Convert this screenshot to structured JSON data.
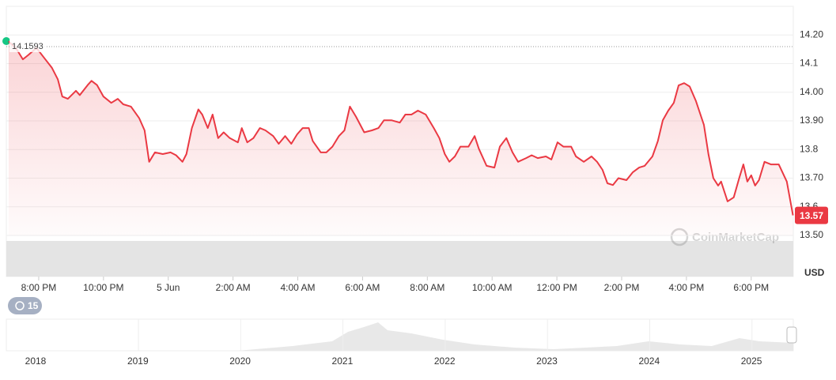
{
  "chart_data": {
    "type": "line",
    "x": [
      0.07,
      0.32,
      0.51,
      0.68,
      0.93,
      1.17,
      1.41,
      1.59,
      1.73,
      1.9,
      2.15,
      2.27,
      2.51,
      2.63,
      2.8,
      3.0,
      3.24,
      3.44,
      3.61,
      3.85,
      4.1,
      4.27,
      4.41,
      4.59,
      4.83,
      5.07,
      5.24,
      5.44,
      5.56,
      5.73,
      5.93,
      6.05,
      6.22,
      6.37,
      6.54,
      6.71,
      6.9,
      7.15,
      7.27,
      7.44,
      7.63,
      7.83,
      8.0,
      8.24,
      8.41,
      8.61,
      8.8,
      8.98,
      9.15,
      9.34,
      9.46,
      9.71,
      9.88,
      10.07,
      10.27,
      10.44,
      10.61,
      10.8,
      11.05,
      11.29,
      11.49,
      11.66,
      11.9,
      12.15,
      12.32,
      12.51,
      12.71,
      12.95,
      13.2,
      13.37,
      13.54,
      13.68,
      13.85,
      14.02,
      14.27,
      14.46,
      14.59,
      14.83,
      15.07,
      15.24,
      15.44,
      15.63,
      15.8,
      16.05,
      16.22,
      16.41,
      16.66,
      16.83,
      17.02,
      17.2,
      17.44,
      17.59,
      17.83,
      18.07,
      18.24,
      18.41,
      18.56,
      18.73,
      18.9,
      19.15,
      19.34,
      19.54,
      19.71,
      19.95,
      20.12,
      20.27,
      20.44,
      20.61,
      20.76,
      20.93,
      21.1,
      21.29,
      21.54,
      21.68,
      21.83,
      21.98,
      22.07,
      22.27,
      22.46,
      22.63,
      22.76,
      22.88,
      23.0,
      23.12,
      23.24,
      23.41,
      23.61,
      23.85,
      24.1,
      24.29
    ],
    "series": [
      {
        "name": "USD",
        "color": "#ea3943",
        "values": [
          14.178,
          14.15,
          14.115,
          14.13,
          14.155,
          14.12,
          14.085,
          14.045,
          13.985,
          13.977,
          14.005,
          13.99,
          14.025,
          14.04,
          14.025,
          13.985,
          13.963,
          13.977,
          13.958,
          13.95,
          13.91,
          13.867,
          13.757,
          13.79,
          13.784,
          13.79,
          13.78,
          13.757,
          13.784,
          13.875,
          13.94,
          13.922,
          13.875,
          13.922,
          13.84,
          13.86,
          13.84,
          13.825,
          13.875,
          13.825,
          13.84,
          13.875,
          13.867,
          13.847,
          13.82,
          13.847,
          13.82,
          13.853,
          13.875,
          13.875,
          13.83,
          13.79,
          13.79,
          13.81,
          13.847,
          13.867,
          13.95,
          13.914,
          13.86,
          13.867,
          13.875,
          13.902,
          13.902,
          13.894,
          13.922,
          13.922,
          13.936,
          13.922,
          13.875,
          13.84,
          13.784,
          13.757,
          13.776,
          13.81,
          13.81,
          13.847,
          13.803,
          13.743,
          13.737,
          13.81,
          13.84,
          13.79,
          13.757,
          13.77,
          13.78,
          13.77,
          13.776,
          13.765,
          13.825,
          13.81,
          13.81,
          13.776,
          13.757,
          13.776,
          13.757,
          13.729,
          13.682,
          13.676,
          13.7,
          13.693,
          13.72,
          13.737,
          13.743,
          13.776,
          13.83,
          13.902,
          13.936,
          13.963,
          14.024,
          14.032,
          14.02,
          13.97,
          13.886,
          13.784,
          13.7,
          13.674,
          13.688,
          13.619,
          13.633,
          13.7,
          13.748,
          13.688,
          13.71,
          13.674,
          13.693,
          13.757,
          13.748,
          13.748,
          13.688,
          13.57
        ]
      }
    ],
    "xlim": [
      0,
      24.3
    ],
    "xticks": [
      {
        "value": 1,
        "label": "8:00 PM"
      },
      {
        "value": 3,
        "label": "10:00 PM"
      },
      {
        "value": 5,
        "label": "5 Jun"
      },
      {
        "value": 7,
        "label": "2:00 AM"
      },
      {
        "value": 9,
        "label": "4:00 AM"
      },
      {
        "value": 11,
        "label": "6:00 AM"
      },
      {
        "value": 13,
        "label": "8:00 AM"
      },
      {
        "value": 15,
        "label": "10:00 AM"
      },
      {
        "value": 17,
        "label": "12:00 PM"
      },
      {
        "value": 19,
        "label": "2:00 PM"
      },
      {
        "value": 21,
        "label": "4:00 PM"
      },
      {
        "value": 23,
        "label": "6:00 PM"
      }
    ],
    "ylim": [
      13.5,
      14.3
    ],
    "yticks": [
      {
        "value": 13.5,
        "label": "13.50"
      },
      13.6,
      {
        "value": 13.7,
        "label": "13.70"
      },
      13.8,
      {
        "value": 13.9,
        "label": "13.90"
      },
      {
        "value": 14.0,
        "label": "14.00"
      },
      14.1,
      {
        "value": 14.2,
        "label": "14.20"
      }
    ],
    "grid": true,
    "reference_price": 14.1593,
    "current_price": 13.57,
    "y_axis_label": "USD",
    "watermark": "CoinMarketCap",
    "badge": "15",
    "navigator_labels": [
      "2018",
      "2019",
      "2020",
      "2021",
      "2022",
      "2023",
      "2024",
      "2025"
    ]
  }
}
